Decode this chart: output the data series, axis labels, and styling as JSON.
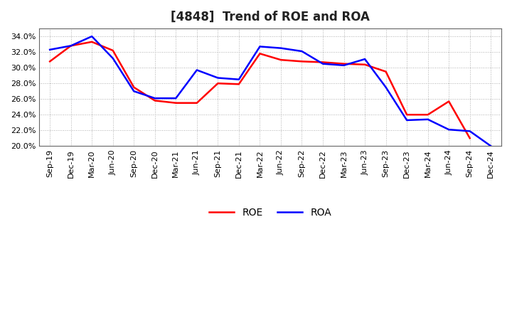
{
  "title": "[4848]  Trend of ROE and ROA",
  "x_labels": [
    "Sep-19",
    "Dec-19",
    "Mar-20",
    "Jun-20",
    "Sep-20",
    "Dec-20",
    "Mar-21",
    "Jun-21",
    "Sep-21",
    "Dec-21",
    "Mar-22",
    "Jun-22",
    "Sep-22",
    "Dec-22",
    "Mar-23",
    "Jun-23",
    "Sep-23",
    "Dec-23",
    "Mar-24",
    "Jun-24",
    "Sep-24",
    "Dec-24"
  ],
  "ROE": [
    30.8,
    32.8,
    33.3,
    32.2,
    27.5,
    25.8,
    25.5,
    25.5,
    28.0,
    27.9,
    31.8,
    31.0,
    30.8,
    30.7,
    30.5,
    30.4,
    29.5,
    24.0,
    24.0,
    25.7,
    21.0,
    null
  ],
  "ROA": [
    32.3,
    32.8,
    34.0,
    31.2,
    27.0,
    26.1,
    26.1,
    29.7,
    28.7,
    28.5,
    32.7,
    32.5,
    32.1,
    30.5,
    30.3,
    31.1,
    27.5,
    23.3,
    23.4,
    22.1,
    21.9,
    20.0
  ],
  "ROE_color": "#ff0000",
  "ROA_color": "#0000ff",
  "ylim": [
    20.0,
    35.0
  ],
  "yticks": [
    20.0,
    22.0,
    24.0,
    26.0,
    28.0,
    30.0,
    32.0,
    34.0
  ],
  "background_color": "#ffffff",
  "plot_bg_color": "#ffffff",
  "grid_color": "#b0b0b0",
  "line_width": 1.8,
  "title_fontsize": 12,
  "tick_fontsize": 8,
  "legend_fontsize": 10
}
